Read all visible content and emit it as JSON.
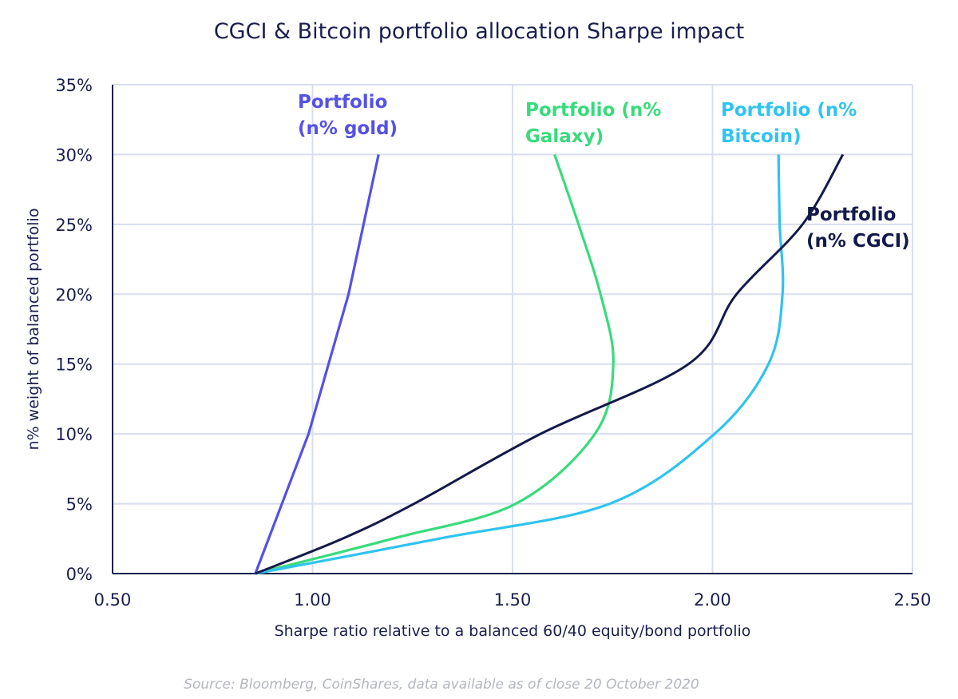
{
  "chart_data": {
    "type": "line",
    "title": "CGCI & Bitcoin portfolio allocation Sharpe impact",
    "xlabel": "Sharpe ratio relative to a balanced 60/40 equity/bond portfolio",
    "ylabel": "n% weight of balanced portfolio",
    "source": "Source: Bloomberg, CoinShares, data available as of close 20 October 2020",
    "xlim": [
      0.5,
      2.5
    ],
    "ylim": [
      0,
      35
    ],
    "x_ticks": [
      "0.50",
      "1.00",
      "1.50",
      "2.00",
      "2.50"
    ],
    "x_tick_values": [
      0.5,
      1.0,
      1.5,
      2.0,
      2.5
    ],
    "y_ticks": [
      "0%",
      "5%",
      "10%",
      "15%",
      "20%",
      "25%",
      "30%",
      "35%"
    ],
    "y_tick_values": [
      0,
      5,
      10,
      15,
      20,
      25,
      30,
      35
    ],
    "grid": true,
    "legend": "inline labels",
    "series": [
      {
        "name": "Portfolio (n% gold)",
        "label_lines": [
          "Portfolio",
          "(n% gold)"
        ],
        "color": "#5551e3",
        "points": [
          [
            0.857,
            0
          ],
          [
            0.99,
            10
          ],
          [
            1.09,
            20
          ],
          [
            1.165,
            30
          ]
        ]
      },
      {
        "name": "Portfolio (n% Galaxy)",
        "label_lines": [
          "Portfolio (n%",
          "Galaxy)"
        ],
        "color": "#38db7c",
        "points": [
          [
            0.857,
            0
          ],
          [
            1.2,
            2.5
          ],
          [
            1.508,
            5
          ],
          [
            1.706,
            10
          ],
          [
            1.752,
            15
          ],
          [
            1.72,
            20
          ],
          [
            1.665,
            25
          ],
          [
            1.605,
            30
          ]
        ]
      },
      {
        "name": "Portfolio (n% Bitcoin)",
        "label_lines": [
          "Portfolio (n%",
          "Bitcoin)"
        ],
        "color": "#2fc3f0",
        "points": [
          [
            0.857,
            0
          ],
          [
            1.316,
            2.5
          ],
          [
            1.743,
            5
          ],
          [
            2.005,
            10
          ],
          [
            2.14,
            15
          ],
          [
            2.175,
            20
          ],
          [
            2.168,
            25
          ],
          [
            2.165,
            30
          ]
        ]
      },
      {
        "name": "Portfolio (n% CGCI)",
        "label_lines": [
          "Portfolio",
          "(n% CGCI)"
        ],
        "color": "#131a4a",
        "points": [
          [
            0.857,
            0
          ],
          [
            1.075,
            2.5
          ],
          [
            1.254,
            5
          ],
          [
            1.57,
            10
          ],
          [
            1.94,
            15
          ],
          [
            2.06,
            20
          ],
          [
            2.225,
            25
          ],
          [
            2.326,
            30
          ]
        ]
      }
    ]
  }
}
